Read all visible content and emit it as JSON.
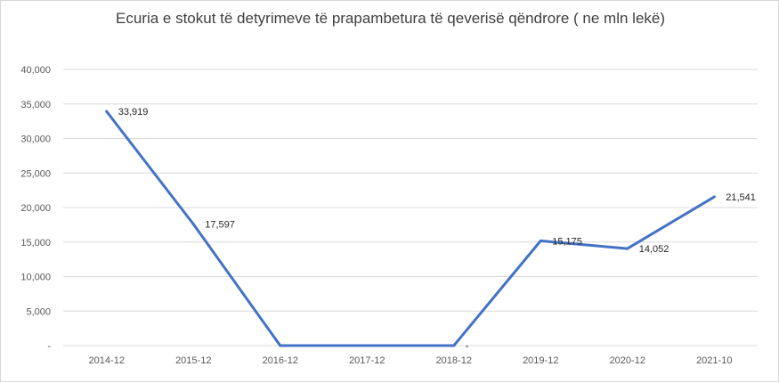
{
  "chart_data": {
    "type": "line",
    "title": "Ecuria e stokut të detyrimeve të prapambetura të qeverisë qëndrore ( ne mln lekë)",
    "categories": [
      "2014-12",
      "2015-12",
      "2016-12",
      "2017-12",
      "2018-12",
      "2019-12",
      "2020-12",
      "2021-10"
    ],
    "series": [
      {
        "values": [
          33919,
          17597,
          0,
          0,
          0,
          15175,
          14052,
          21541
        ],
        "data_labels": [
          "33,919",
          "17,597",
          "",
          "",
          "-",
          "15,175",
          "14,052",
          "21,541"
        ],
        "color": "#4472c4"
      }
    ],
    "ylim": [
      0,
      40000
    ],
    "y_ticks": [
      0,
      5000,
      10000,
      15000,
      20000,
      25000,
      30000,
      35000,
      40000
    ],
    "y_tick_labels": [
      "-",
      "5,000",
      "10,000",
      "15,000",
      "20,000",
      "25,000",
      "30,000",
      "35,000",
      "40,000"
    ],
    "grid": true,
    "legend": "none",
    "xlabel": "",
    "ylabel": ""
  }
}
